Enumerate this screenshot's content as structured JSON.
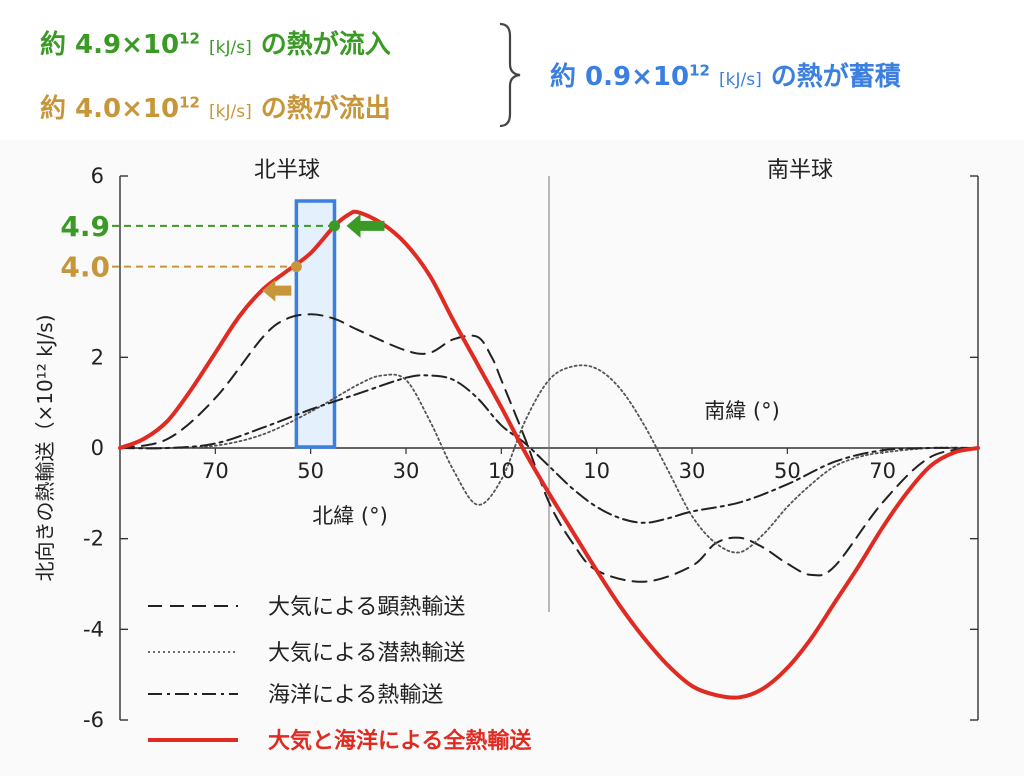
{
  "annotations": {
    "inflow": {
      "prefix": "約 4.9×10",
      "exp": "12",
      "unit": "[kJ/s]",
      "suffix": "の熱が流入",
      "color": "#3a9a25"
    },
    "outflow": {
      "prefix": "約 4.0×10",
      "exp": "12",
      "unit": "[kJ/s]",
      "suffix": "の熱が流出",
      "color": "#c8963a"
    },
    "storage": {
      "prefix": "約 0.9×10",
      "exp": "12",
      "unit": "[kJ/s]",
      "suffix": "の熱が蓄積",
      "color": "#3b7fe0"
    }
  },
  "chart_data": {
    "type": "line",
    "title": "",
    "ylabel": "北向きの熱輸送（×10¹² kJ/s)",
    "xlabel_north": "北緯 (°)",
    "xlabel_south": "南緯 (°)",
    "region_north": "北半球",
    "region_south": "南半球",
    "x_unit_note": "x = latitude in degrees; positive = North, negative = South",
    "xlim": [
      90,
      -90
    ],
    "ylim": [
      -6,
      6
    ],
    "yticks": [
      6,
      2,
      0,
      -2,
      -4,
      -6
    ],
    "xticks_north": [
      70,
      50,
      30,
      10
    ],
    "xticks_south": [
      10,
      30,
      50,
      70
    ],
    "highlight_band_lat": [
      53,
      45
    ],
    "marker_in": {
      "lat": 45,
      "value": 4.9,
      "label": "4.9",
      "color": "#3a9a25"
    },
    "marker_out": {
      "lat": 53,
      "value": 4.0,
      "label": "4.0",
      "color": "#c8963a"
    },
    "series": [
      {
        "name": "大気による顕熱輸送",
        "style": "dashed",
        "color": "#222222",
        "x": [
          90,
          80,
          70,
          60,
          55,
          50,
          45,
          40,
          30,
          25,
          20,
          15,
          12,
          10,
          5,
          0,
          -5,
          -10,
          -20,
          -30,
          -35,
          -40,
          -45,
          -50,
          -55,
          -60,
          -70,
          -80,
          -90
        ],
        "y": [
          0,
          0.2,
          1.1,
          2.45,
          2.85,
          2.95,
          2.85,
          2.6,
          2.15,
          2.1,
          2.4,
          2.45,
          2.0,
          1.5,
          0.2,
          -1.2,
          -2.1,
          -2.7,
          -2.95,
          -2.6,
          -2.1,
          -1.98,
          -2.2,
          -2.55,
          -2.8,
          -2.6,
          -1.2,
          -0.2,
          0
        ]
      },
      {
        "name": "大気による潜熱輸送",
        "style": "dotted",
        "color": "#555555",
        "x": [
          90,
          80,
          70,
          60,
          50,
          40,
          35,
          30,
          25,
          20,
          15,
          10,
          5,
          0,
          -5,
          -10,
          -15,
          -20,
          -25,
          -30,
          -35,
          -40,
          -45,
          -50,
          -55,
          -60,
          -65,
          -70,
          -80,
          -90
        ],
        "y": [
          0,
          0,
          0.05,
          0.3,
          0.8,
          1.4,
          1.6,
          1.5,
          0.6,
          -0.5,
          -1.25,
          -0.7,
          0.6,
          1.5,
          1.8,
          1.75,
          1.3,
          0.5,
          -0.5,
          -1.5,
          -2.1,
          -2.3,
          -1.9,
          -1.3,
          -0.8,
          -0.4,
          -0.2,
          -0.1,
          0,
          0
        ]
      },
      {
        "name": "海洋による熱輸送",
        "style": "dashdot",
        "color": "#222222",
        "x": [
          90,
          80,
          70,
          60,
          50,
          40,
          30,
          25,
          20,
          15,
          10,
          5,
          0,
          -5,
          -10,
          -15,
          -20,
          -25,
          -30,
          -40,
          -50,
          -60,
          -70,
          -80,
          -90
        ],
        "y": [
          0,
          0,
          0.1,
          0.45,
          0.85,
          1.2,
          1.55,
          1.6,
          1.5,
          1.1,
          0.5,
          0.1,
          -0.4,
          -0.9,
          -1.3,
          -1.55,
          -1.65,
          -1.55,
          -1.4,
          -1.2,
          -0.8,
          -0.3,
          -0.05,
          0,
          0
        ]
      },
      {
        "name": "大気と海洋による全熱輸送",
        "style": "solid",
        "color": "#e02b22",
        "x": [
          90,
          85,
          80,
          75,
          70,
          65,
          60,
          55,
          50,
          45,
          42,
          40,
          35,
          30,
          25,
          20,
          15,
          10,
          5,
          0,
          -5,
          -10,
          -15,
          -20,
          -25,
          -30,
          -35,
          -40,
          -45,
          -50,
          -55,
          -60,
          -65,
          -70,
          -75,
          -80,
          -85,
          -90
        ],
        "y": [
          0,
          0.2,
          0.6,
          1.3,
          2.1,
          2.9,
          3.5,
          3.9,
          4.3,
          4.9,
          5.15,
          5.2,
          4.95,
          4.5,
          3.8,
          2.8,
          1.85,
          0.9,
          -0.1,
          -1.0,
          -1.85,
          -2.7,
          -3.5,
          -4.2,
          -4.8,
          -5.25,
          -5.45,
          -5.5,
          -5.3,
          -4.85,
          -4.2,
          -3.4,
          -2.6,
          -1.75,
          -1.0,
          -0.4,
          -0.1,
          0
        ]
      }
    ]
  }
}
